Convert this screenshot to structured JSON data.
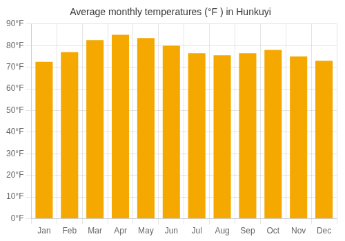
{
  "chart_data": {
    "type": "bar",
    "title": "Average monthly temperatures (°F ) in Hunkuyi",
    "categories": [
      "Jan",
      "Feb",
      "Mar",
      "Apr",
      "May",
      "Jun",
      "Jul",
      "Aug",
      "Sep",
      "Oct",
      "Nov",
      "Dec"
    ],
    "values": [
      72.5,
      77.0,
      82.5,
      85.0,
      83.5,
      80.0,
      76.5,
      75.5,
      76.5,
      78.0,
      75.0,
      73.0
    ],
    "color": "#F5A800",
    "ylim": [
      0,
      90
    ],
    "yticks": [
      {
        "value": 0,
        "label": "0°F"
      },
      {
        "value": 10,
        "label": "10°F"
      },
      {
        "value": 20,
        "label": "20°F"
      },
      {
        "value": 30,
        "label": "30°F"
      },
      {
        "value": 40,
        "label": "40°F"
      },
      {
        "value": 50,
        "label": "50°F"
      },
      {
        "value": 60,
        "label": "60°F"
      },
      {
        "value": 70,
        "label": "70°F"
      },
      {
        "value": 80,
        "label": "80°F"
      },
      {
        "value": 90,
        "label": "90°F"
      }
    ],
    "grid": true
  }
}
